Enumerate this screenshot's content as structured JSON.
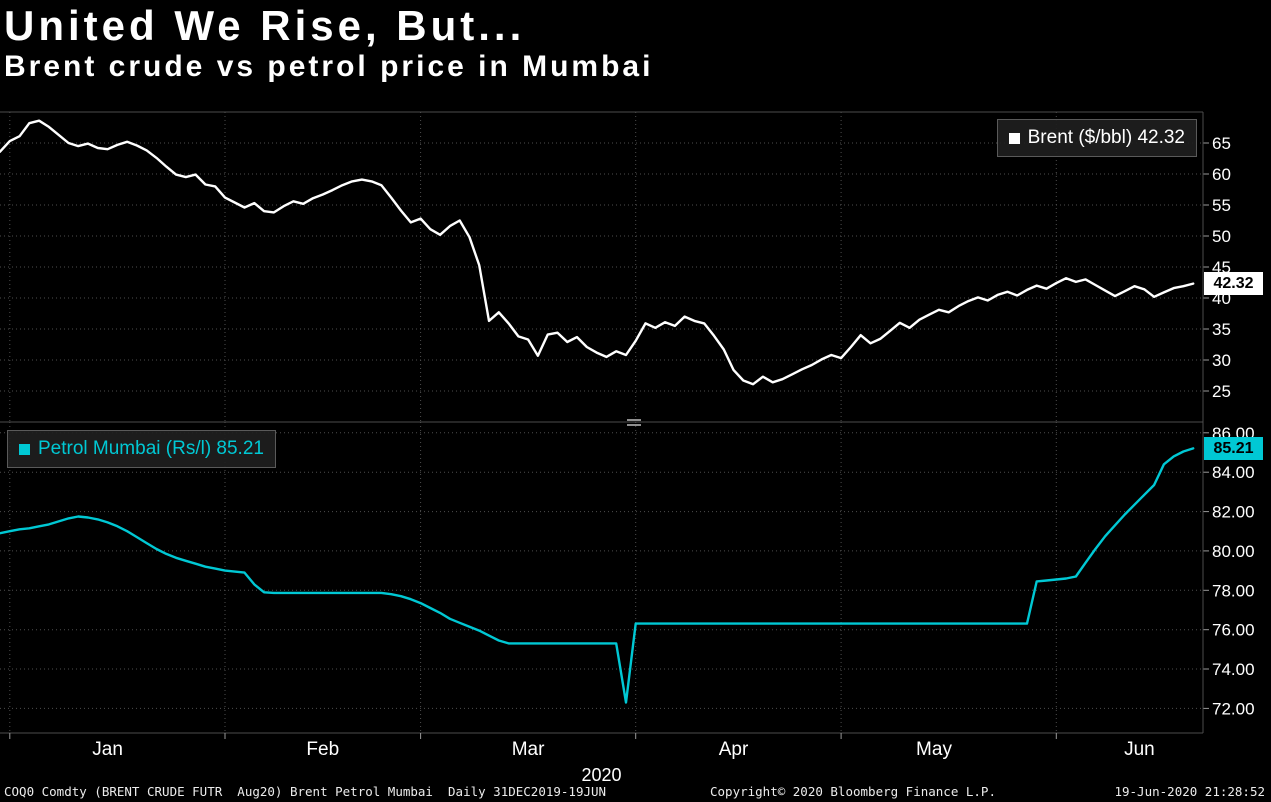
{
  "header": {
    "title": "United We Rise, But...",
    "subtitle": "Brent crude vs petrol price in Mumbai"
  },
  "footer": {
    "left": "COQ0 Comdty (BRENT CRUDE FUTR  Aug20) Brent Petrol Mumbai  Daily 31DEC2019-19JUN",
    "center": "Copyright© 2020 Bloomberg Finance L.P.",
    "right": "19-Jun-2020 21:28:52"
  },
  "colors": {
    "background": "#000000",
    "grid": "#4e4e4e",
    "brent": "#ffffff",
    "petrol": "#00c8d4",
    "axis_text": "#ffffff"
  },
  "chart_data": {
    "type": "line",
    "title": "United We Rise, But...",
    "subtitle": "Brent crude vs petrol price in Mumbai",
    "grid": "dotted",
    "x_axis": {
      "unit": "trading-day index, 0 = 31DEC2019, 122 = 19JUN2020",
      "domain": [
        0,
        123
      ],
      "year_label": "2020",
      "months": [
        {
          "label": "Jan",
          "start": 1,
          "center": 11
        },
        {
          "label": "Feb",
          "start": 23,
          "center": 33
        },
        {
          "label": "Mar",
          "start": 43,
          "center": 54
        },
        {
          "label": "Apr",
          "start": 65,
          "center": 75
        },
        {
          "label": "May",
          "start": 86,
          "center": 95.5
        },
        {
          "label": "Jun",
          "start": 108,
          "center": 116.5
        }
      ]
    },
    "panels": [
      {
        "series_name": "Brent ($/bbl)",
        "legend_label": "Brent ($/bbl) 42.32",
        "last_value": "42.32",
        "color": "#ffffff",
        "ylim": [
          20,
          70
        ],
        "yticks": [
          25,
          30,
          35,
          40,
          45,
          50,
          55,
          60,
          65
        ],
        "ytick_format": "int",
        "legend_position": "top-right",
        "values": [
          63.6,
          65.3,
          66.1,
          68.2,
          68.6,
          67.6,
          66.3,
          65.0,
          64.5,
          64.9,
          64.2,
          64.0,
          64.7,
          65.2,
          64.6,
          63.8,
          62.6,
          61.2,
          59.9,
          59.5,
          59.9,
          58.3,
          58.0,
          56.2,
          55.4,
          54.6,
          55.3,
          54.0,
          53.8,
          54.8,
          55.6,
          55.2,
          56.1,
          56.7,
          57.4,
          58.2,
          58.8,
          59.1,
          58.8,
          58.2,
          56.2,
          54.1,
          52.2,
          52.8,
          51.1,
          50.2,
          51.6,
          52.5,
          49.8,
          45.3,
          36.3,
          37.7,
          35.9,
          33.8,
          33.3,
          30.7,
          34.1,
          34.4,
          32.9,
          33.7,
          32.1,
          31.2,
          30.5,
          31.4,
          30.8,
          33.1,
          35.9,
          35.2,
          36.1,
          35.5,
          37.0,
          36.3,
          35.9,
          33.9,
          31.7,
          28.4,
          26.7,
          26.1,
          27.3,
          26.4,
          26.9,
          27.7,
          28.5,
          29.2,
          30.1,
          30.8,
          30.3,
          32.1,
          34.0,
          32.7,
          33.4,
          34.7,
          36.0,
          35.2,
          36.5,
          37.3,
          38.1,
          37.7,
          38.7,
          39.5,
          40.1,
          39.6,
          40.5,
          41.0,
          40.4,
          41.3,
          42.0,
          41.5,
          42.4,
          43.2,
          42.6,
          43.0,
          42.1,
          41.2,
          40.3,
          41.1,
          41.9,
          41.4,
          40.2,
          40.9,
          41.6,
          41.9,
          42.32
        ]
      },
      {
        "series_name": "Petrol Mumbai (Rs/l)",
        "legend_label": "Petrol Mumbai (Rs/l) 85.21",
        "last_value": "85.21",
        "color": "#00c8d4",
        "ylim": [
          70.75,
          86.55
        ],
        "yticks": [
          72,
          74,
          76,
          78,
          80,
          82,
          84,
          86
        ],
        "ytick_format": "2dp",
        "legend_position": "top-left",
        "values": [
          80.9,
          81.0,
          81.1,
          81.15,
          81.25,
          81.35,
          81.5,
          81.65,
          81.75,
          81.7,
          81.6,
          81.45,
          81.25,
          81.0,
          80.7,
          80.4,
          80.1,
          79.85,
          79.65,
          79.5,
          79.35,
          79.2,
          79.1,
          79.0,
          78.95,
          78.9,
          78.3,
          77.9,
          77.87,
          77.87,
          77.87,
          77.87,
          77.87,
          77.87,
          77.87,
          77.87,
          77.87,
          77.87,
          77.87,
          77.87,
          77.8,
          77.7,
          77.55,
          77.35,
          77.1,
          76.85,
          76.55,
          76.35,
          76.15,
          75.95,
          75.7,
          75.45,
          75.3,
          75.3,
          75.3,
          75.3,
          75.3,
          75.3,
          75.3,
          75.3,
          75.3,
          75.3,
          75.3,
          75.3,
          72.3,
          76.31,
          76.31,
          76.31,
          76.31,
          76.31,
          76.31,
          76.31,
          76.31,
          76.31,
          76.31,
          76.31,
          76.31,
          76.31,
          76.31,
          76.31,
          76.31,
          76.31,
          76.31,
          76.31,
          76.31,
          76.31,
          76.31,
          76.31,
          76.31,
          76.31,
          76.31,
          76.31,
          76.31,
          76.31,
          76.31,
          76.31,
          76.31,
          76.31,
          76.31,
          76.31,
          76.31,
          76.31,
          76.31,
          76.31,
          76.31,
          76.31,
          78.45,
          78.5,
          78.55,
          78.6,
          78.7,
          79.4,
          80.1,
          80.75,
          81.3,
          81.85,
          82.35,
          82.85,
          83.35,
          84.4,
          84.8,
          85.05,
          85.21
        ]
      }
    ]
  }
}
